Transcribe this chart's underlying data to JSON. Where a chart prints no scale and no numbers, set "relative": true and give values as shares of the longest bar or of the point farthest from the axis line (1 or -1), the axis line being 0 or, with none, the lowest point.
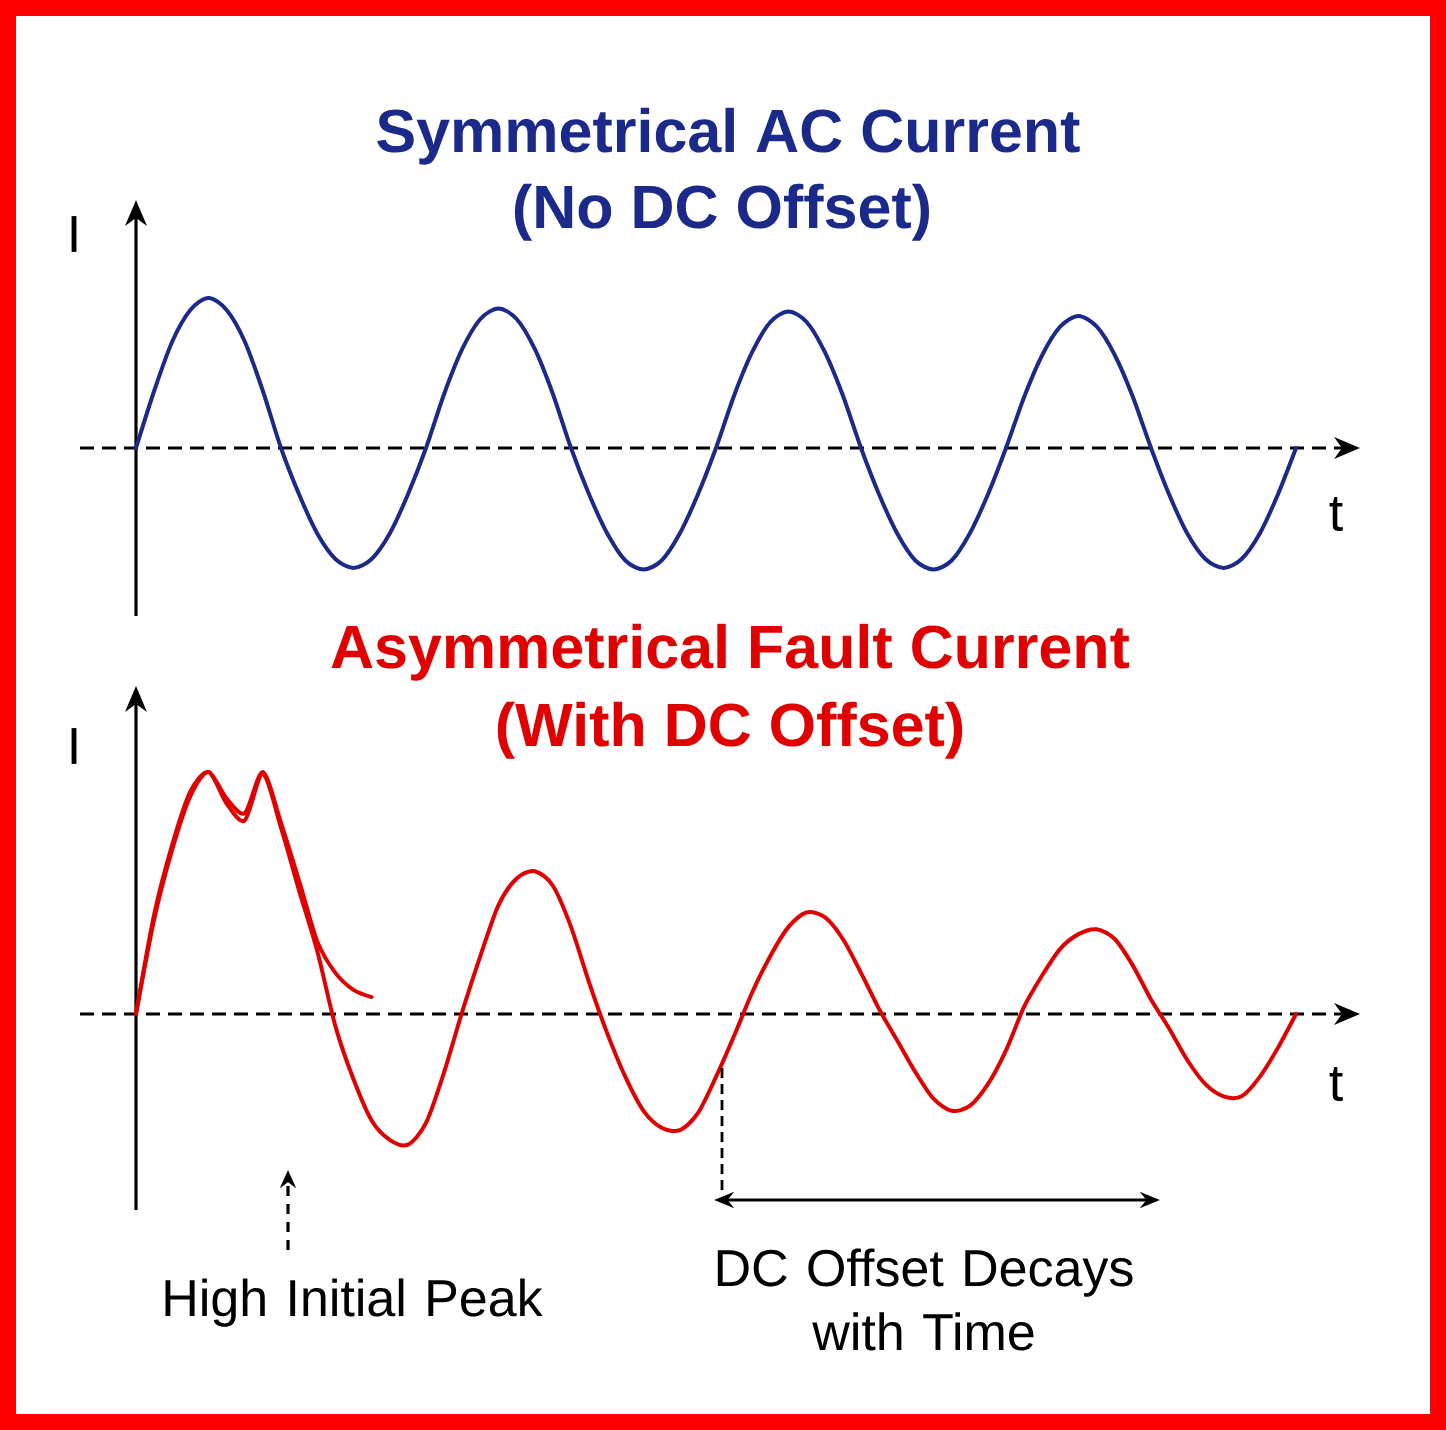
{
  "chart_data": [
    {
      "type": "line",
      "title": "Symmetrical AC Current",
      "subtitle": "(No DC Offset)",
      "xlabel": "t",
      "ylabel": "I",
      "relative": true,
      "categories": [
        null,
        null,
        null,
        null,
        null,
        null,
        null,
        null,
        null,
        null,
        null,
        null,
        null,
        null,
        null,
        null,
        null,
        null,
        null,
        null,
        null,
        null,
        null,
        null,
        null,
        null,
        null,
        null,
        null,
        null,
        null,
        null,
        null,
        null,
        null,
        null,
        null,
        null,
        null,
        null,
        null,
        null,
        null,
        null,
        null,
        null,
        null,
        null,
        null,
        null,
        null,
        null,
        null,
        null,
        null,
        null,
        null,
        null,
        null,
        null,
        null,
        null,
        null,
        null,
        null
      ],
      "series": [
        {
          "color": "#1b2a8a",
          "values": [
            0,
            0.38,
            0.71,
            0.92,
            1,
            0.92,
            0.71,
            0.38,
            0,
            -0.31,
            -0.57,
            -0.74,
            -0.8,
            -0.74,
            -0.57,
            -0.31,
            0,
            0.36,
            0.66,
            0.86,
            0.93,
            0.86,
            0.66,
            0.36,
            0,
            -0.31,
            -0.57,
            -0.75,
            -0.81,
            -0.75,
            -0.57,
            -0.31,
            0,
            0.35,
            0.64,
            0.84,
            0.91,
            0.84,
            0.64,
            0.35,
            0,
            -0.31,
            -0.57,
            -0.75,
            -0.81,
            -0.75,
            -0.57,
            -0.31,
            0,
            0.34,
            0.62,
            0.81,
            0.88,
            0.81,
            0.62,
            0.34,
            0,
            -0.31,
            -0.57,
            -0.74,
            -0.8,
            -0.74,
            -0.57,
            -0.31,
            0
          ]
        }
      ],
      "ref_lines": [
        {
          "axis": "y",
          "value": 0,
          "line_style": "dashed"
        }
      ]
    },
    {
      "type": "line",
      "title": "Asymmetrical Fault Current",
      "subtitle": "(With DC Offset)",
      "xlabel": "t",
      "ylabel": "I",
      "relative": true,
      "categories": [
        null,
        null,
        null,
        null,
        null,
        null,
        null,
        null,
        null,
        null,
        null,
        null,
        null,
        null,
        null,
        null,
        null,
        null,
        null,
        null,
        null,
        null,
        null,
        null,
        null,
        null,
        null,
        null,
        null,
        null,
        null,
        null,
        null,
        null,
        null,
        null,
        null,
        null,
        null,
        null,
        null,
        null,
        null,
        null,
        null,
        null,
        null,
        null,
        null,
        null,
        null,
        null,
        null,
        null,
        null,
        null,
        null,
        null,
        null,
        null,
        null,
        null,
        null,
        null,
        null
      ],
      "series": [
        {
          "color": "#e00000",
          "values": [
            0,
            0.39,
            0.68,
            0.9,
            1,
            0.87,
            0.8,
            0.99,
            0.77,
            0.51,
            0.26,
            -0.05,
            -0.27,
            -0.44,
            -0.52,
            -0.54,
            -0.45,
            -0.24,
            0.01,
            0.24,
            0.45,
            0.56,
            0.59,
            0.53,
            0.36,
            0.13,
            -0.08,
            -0.26,
            -0.4,
            -0.47,
            -0.48,
            -0.41,
            -0.26,
            -0.09,
            0.09,
            0.24,
            0.36,
            0.42,
            0.4,
            0.31,
            0.17,
            0.02,
            -0.11,
            -0.24,
            -0.35,
            -0.4,
            -0.38,
            -0.29,
            -0.15,
            0.03,
            0.16,
            0.27,
            0.33,
            0.35,
            0.31,
            0.2,
            0.06,
            -0.06,
            -0.19,
            -0.29,
            -0.34,
            -0.34,
            -0.26,
            -0.14,
            0
          ]
        },
        {
          "color": "#e00000",
          "values": [
            0,
            0.41,
            0.7,
            0.92,
            1,
            0.89,
            0.83,
            1,
            0.79,
            0.55,
            0.3,
            0.17,
            0.1,
            0.07,
            null,
            null,
            null,
            null,
            null,
            null,
            null,
            null,
            null,
            null,
            null,
            null,
            null,
            null,
            null,
            null,
            null,
            null,
            null,
            null,
            null,
            null,
            null,
            null,
            null,
            null,
            null,
            null,
            null,
            null,
            null,
            null,
            null,
            null,
            null,
            null,
            null,
            null,
            null,
            null,
            null,
            null,
            null,
            null,
            null,
            null,
            null,
            null,
            null,
            null,
            null
          ]
        }
      ],
      "ref_lines": [
        {
          "axis": "y",
          "value": 0,
          "line_style": "dashed"
        }
      ],
      "annotations": [
        "High Initial Peak",
        "DC Offset Decays with Time"
      ]
    }
  ]
}
